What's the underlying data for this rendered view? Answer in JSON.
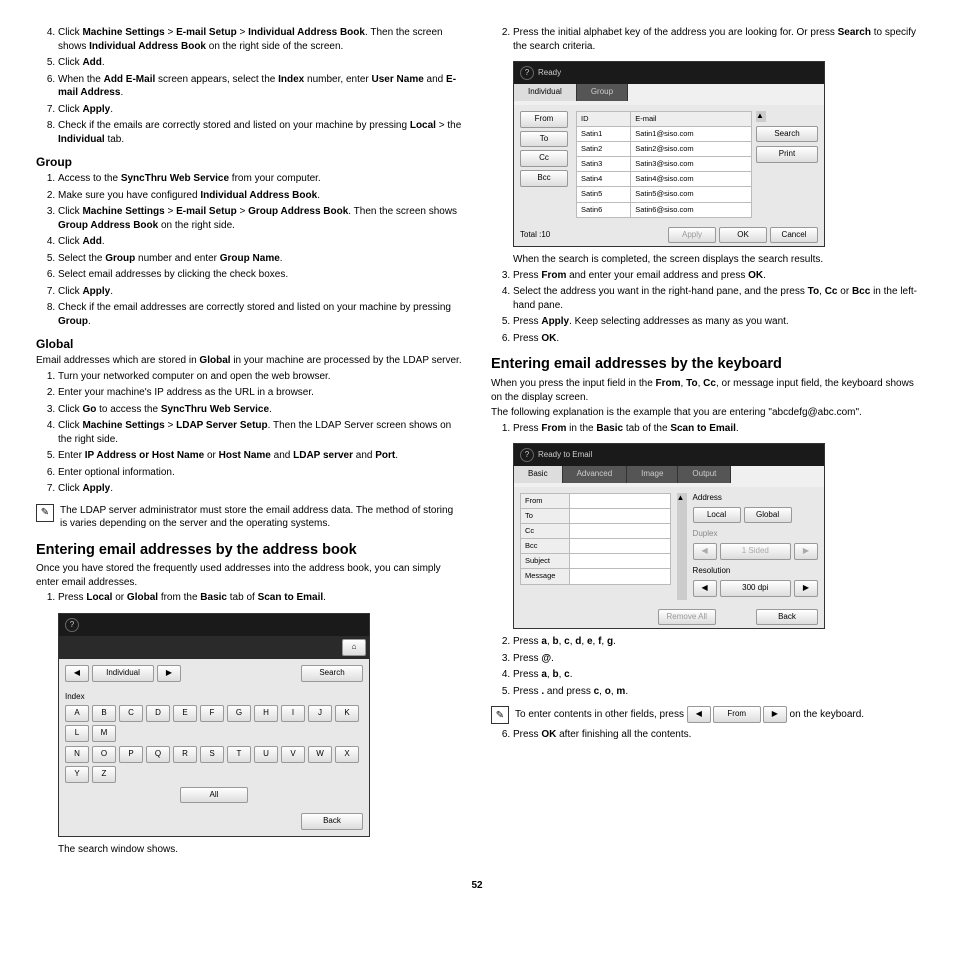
{
  "left": {
    "top_list": [
      "Click <b>Machine Settings</b> > <b>E-mail Setup</b> > <b>Individual Address Book</b>. Then the screen shows <b>Individual Address Book</b> on the right side of the screen.",
      "Click <b>Add</b>.",
      "When the <b>Add E-Mail</b> screen appears, select the <b>Index</b> number, enter <b>User Name</b> and <b>E-mail Address</b>.",
      "Click <b>Apply</b>.",
      "Check if the emails are correctly stored and listed on your machine by pressing <b>Local</b> > the <b>Individual</b> tab."
    ],
    "group_heading": "Group",
    "group_list": [
      "Access to the <b>SyncThru Web Service</b> from your computer.",
      "Make sure you have configured <b>Individual Address Book</b>.",
      "Click <b>Machine Settings</b> > <b>E-mail Setup</b> > <b>Group Address Book</b>. Then the screen shows <b>Group Address Book</b> on the right side.",
      "Click <b>Add</b>.",
      "Select the <b>Group</b> number and enter <b>Group Name</b>.",
      "Select email addresses by clicking the check boxes.",
      "Click <b>Apply</b>.",
      "Check if the email addresses are correctly stored and listed on your machine by pressing <b>Group</b>."
    ],
    "global_heading": "Global",
    "global_intro": "Email addresses which are stored in <b>Global</b> in your machine are processed by the LDAP server.",
    "global_list": [
      "Turn your networked computer on and open the web browser.",
      "Enter your machine's IP address as the URL in a browser.",
      "Click <b>Go</b> to access the <b>SyncThru Web Service</b>.",
      "Click <b>Machine Settings</b> > <b>LDAP Server Setup</b>. Then the LDAP Server screen shows on the right side.",
      "Enter <b>IP Address or Host Name</b> or <b>Host Name</b> and <b>LDAP server</b> and <b>Port</b>.",
      "Enter optional information.",
      "Click <b>Apply</b>."
    ],
    "global_note": "The LDAP server administrator must store the email address data. The method of storing is varies depending on the server and the operating systems.",
    "h_addrbook": "Entering email addresses by the address book",
    "addrbook_intro": "Once you have stored the frequently used addresses into the address book, you can simply enter email addresses.",
    "addrbook_step1": "Press <b>Local</b> or <b>Global</b> from the <b>Basic</b> tab of <b>Scan to Email</b>.",
    "ss1": {
      "individual": "Individual",
      "search": "Search",
      "index": "Index",
      "keys_row1": [
        "A",
        "B",
        "C",
        "D",
        "E",
        "F",
        "G",
        "H",
        "I",
        "J",
        "K",
        "L",
        "M"
      ],
      "keys_row2": [
        "N",
        "O",
        "P",
        "Q",
        "R",
        "S",
        "T",
        "U",
        "V",
        "W",
        "X",
        "Y",
        "Z"
      ],
      "all": "All",
      "back": "Back"
    },
    "ss1_caption": "The search window shows."
  },
  "right": {
    "top_step": "Press the initial alphabet key of the address you are looking for. Or press <b>Search</b> to specify the search criteria.",
    "ss2": {
      "ready": "Ready",
      "tabs": [
        "Individual",
        "Group"
      ],
      "side": [
        "From",
        "To",
        "Cc",
        "Bcc"
      ],
      "headers": [
        "ID",
        "E-mail"
      ],
      "rows": [
        [
          "Satin1",
          "Satin1@siso.com"
        ],
        [
          "Satin2",
          "Satin2@siso.com"
        ],
        [
          "Satin3",
          "Satin3@siso.com"
        ],
        [
          "Satin4",
          "Satin4@siso.com"
        ],
        [
          "Satin5",
          "Satin5@siso.com"
        ],
        [
          "Satin6",
          "Satin6@siso.com"
        ]
      ],
      "search": "Search",
      "print": "Print",
      "total": "Total :10",
      "apply": "Apply",
      "ok": "OK",
      "cancel": "Cancel"
    },
    "after_ss2": "When the search is completed, the screen displays the search results.",
    "list2": [
      "Press <b>From</b> and enter your email address and press <b>OK</b>.",
      "Select the address you want in the right-hand pane, and the press <b>To</b>, <b>Cc</b> or <b>Bcc</b> in the left-hand pane.",
      "Press <b>Apply</b>. Keep selecting addresses as many as you want.",
      "Press <b>OK</b>."
    ],
    "h_keyboard": "Entering email addresses by the keyboard",
    "kb_intro1": "When you press the input field in the <b>From</b>, <b>To</b>, <b>Cc</b>, or message input field, the keyboard shows on the display screen.",
    "kb_intro2": "The following explanation is the example that you are entering \"abcdefg@abc.com\".",
    "kb_step1": "Press <b>From</b> in the <b>Basic</b> tab of the <b>Scan to Email</b>.",
    "ss3": {
      "title": "Ready to Email",
      "tabs": [
        "Basic",
        "Advanced",
        "Image",
        "Output"
      ],
      "fields": [
        "From",
        "To",
        "Cc",
        "Bcc",
        "Subject",
        "Message"
      ],
      "address": "Address",
      "local": "Local",
      "global": "Global",
      "duplex": "Duplex",
      "sided": "1 Sided",
      "resolution": "Resolution",
      "dpi": "300 dpi",
      "remove": "Remove All",
      "back": "Back"
    },
    "list3": [
      "Press <b>a</b>, <b>b</b>, <b>c</b>, <b>d</b>, <b>e</b>, <b>f</b>, <b>g</b>.",
      "Press <b>@</b>.",
      "Press <b>a</b>, <b>b</b>, <b>c</b>.",
      "Press <b>.</b> and press <b>c</b>, <b>o</b>, <b>m</b>."
    ],
    "note2_a": "To enter contents in other fields, press",
    "note2_btn": "From",
    "note2_b": "on the keyboard.",
    "final": "Press <b>OK</b> after finishing all the contents."
  },
  "page_number": "52"
}
